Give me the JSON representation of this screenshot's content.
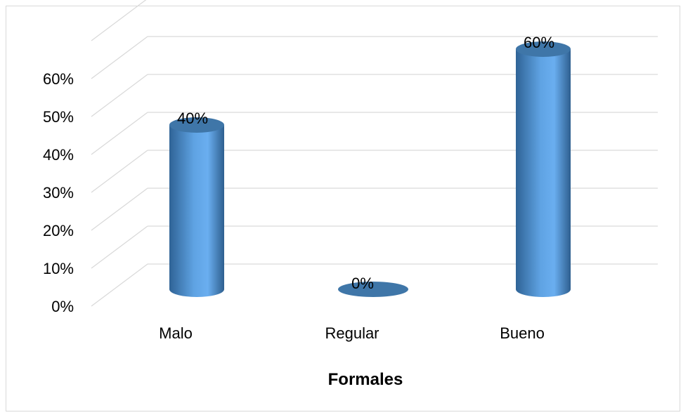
{
  "chart_data": {
    "type": "bar",
    "style": "3d-cylinder",
    "categories": [
      "Malo",
      "Regular",
      "Bueno"
    ],
    "values": [
      40,
      0,
      60
    ],
    "data_labels": [
      "40%",
      "0%",
      "60%"
    ],
    "xlabel": "Formales",
    "ylabel": "",
    "ylim": [
      0,
      60
    ],
    "y_ticks": [
      "0%",
      "10%",
      "20%",
      "30%",
      "40%",
      "50%",
      "60%"
    ],
    "grid": true,
    "legend": "none",
    "colors": {
      "bar": "#5b9bd5",
      "bar_dark": "#2e5f8f",
      "bar_top": "#3f76a8",
      "grid": "#d9d9d9"
    }
  }
}
